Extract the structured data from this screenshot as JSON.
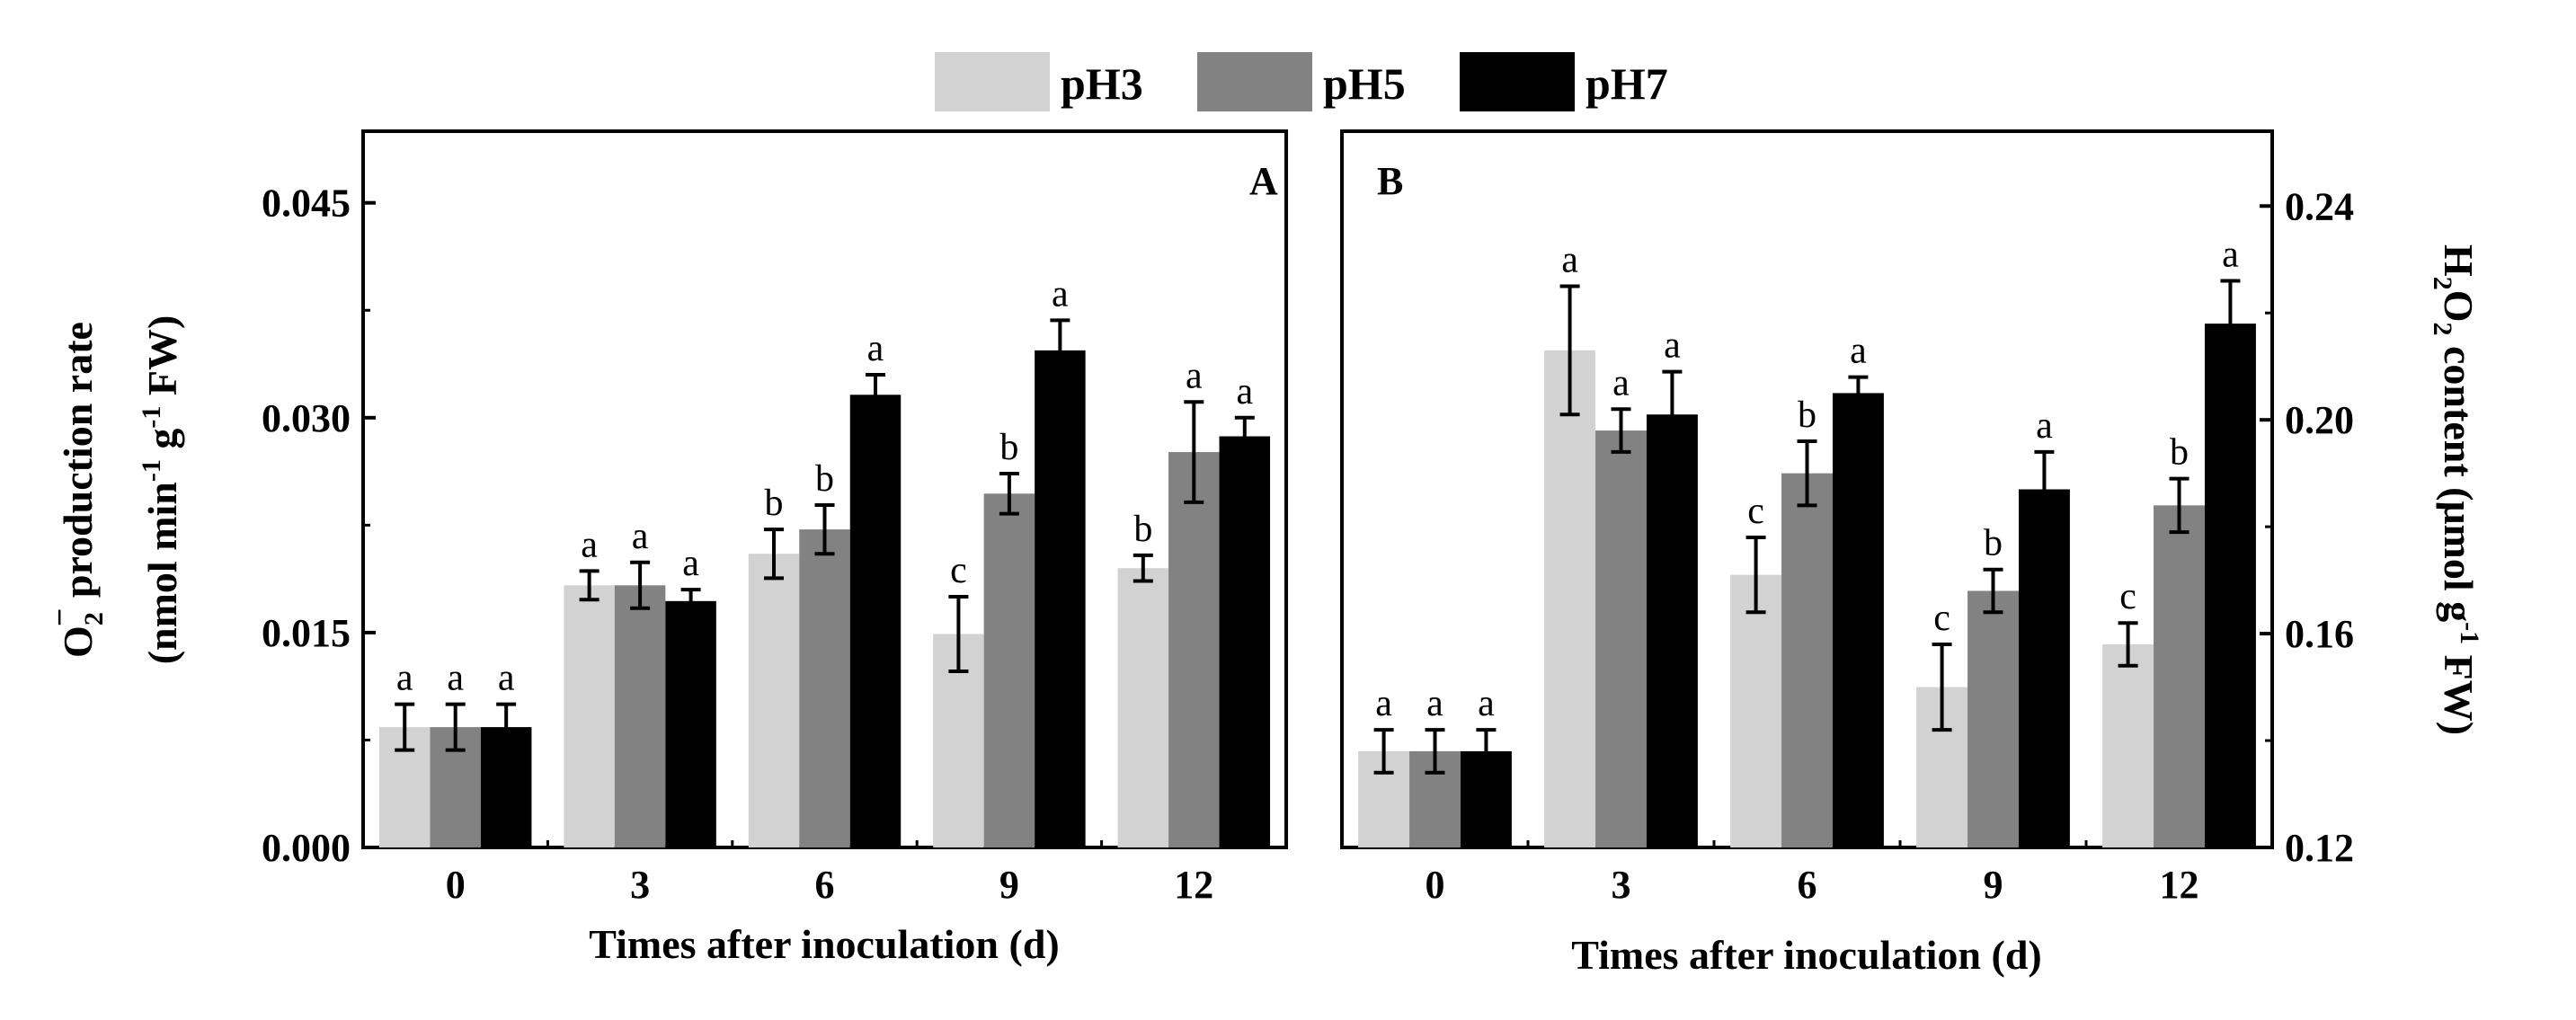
{
  "legend": [
    "pH3",
    "pH5",
    "pH7"
  ],
  "colors": {
    "pH3": "#d2d2d2",
    "pH5": "#828282",
    "pH7": "#000000"
  },
  "chart_data": [
    {
      "type": "bar",
      "panel": "A",
      "categories": [
        "0",
        "3",
        "6",
        "9",
        "12"
      ],
      "xlabel": "Times after inoculation (d)",
      "ylabel_main": "production  rate",
      "ylabel_unit": "(nmol min g FW)",
      "yticks": [
        "0.000",
        "0.015",
        "0.030",
        "0.045"
      ],
      "ylim": [
        0,
        0.05
      ],
      "series": [
        {
          "name": "pH3",
          "values": [
            0.0084,
            0.0183,
            0.0205,
            0.0149,
            0.0195
          ],
          "errors": [
            0.0016,
            0.001,
            0.0017,
            0.0026,
            0.0009
          ],
          "letters": [
            "a",
            "a",
            "b",
            "c",
            "b"
          ]
        },
        {
          "name": "pH5",
          "values": [
            0.0084,
            0.0183,
            0.0222,
            0.0247,
            0.0276
          ],
          "errors": [
            0.0016,
            0.0016,
            0.0017,
            0.0014,
            0.0035
          ],
          "letters": [
            "a",
            "a",
            "b",
            "b",
            "a"
          ]
        },
        {
          "name": "pH7",
          "values": [
            0.0084,
            0.0172,
            0.0316,
            0.0347,
            0.0287
          ],
          "errors": [
            0.0016,
            0.0008,
            0.0014,
            0.0021,
            0.0013
          ],
          "letters": [
            "a",
            "a",
            "a",
            "a",
            "a"
          ]
        }
      ]
    },
    {
      "type": "bar",
      "panel": "B",
      "categories": [
        "0",
        "3",
        "6",
        "9",
        "12"
      ],
      "xlabel": "Times after inoculation (d)",
      "ylabel_main": "content (μmol g FW)",
      "yticks": [
        "0.12",
        "0.16",
        "0.20",
        "0.24"
      ],
      "ylim": [
        0.12,
        0.254
      ],
      "axis_side": "right",
      "series": [
        {
          "name": "pH3",
          "values": [
            0.138,
            0.213,
            0.171,
            0.15,
            0.158
          ],
          "errors": [
            0.004,
            0.012,
            0.007,
            0.008,
            0.004
          ],
          "letters": [
            "a",
            "a",
            "c",
            "c",
            "c"
          ]
        },
        {
          "name": "pH5",
          "values": [
            0.138,
            0.198,
            0.19,
            0.168,
            0.184
          ],
          "errors": [
            0.004,
            0.004,
            0.006,
            0.004,
            0.005
          ],
          "letters": [
            "a",
            "a",
            "b",
            "b",
            "b"
          ]
        },
        {
          "name": "pH7",
          "values": [
            0.138,
            0.201,
            0.205,
            0.187,
            0.218
          ],
          "errors": [
            0.004,
            0.008,
            0.003,
            0.007,
            0.008
          ],
          "letters": [
            "a",
            "a",
            "a",
            "a",
            "a"
          ]
        }
      ]
    }
  ],
  "labels": {
    "o2_symbol": "O",
    "o2_sub": "2",
    "o2_sup": "−",
    "unit_sup_min": "-1",
    "unit_sup_g": "-1",
    "h2o2_h": "H",
    "h2o2_2a": "2",
    "h2o2_o": "O",
    "h2o2_2b": "2",
    "h2o2_sup": "-1"
  }
}
